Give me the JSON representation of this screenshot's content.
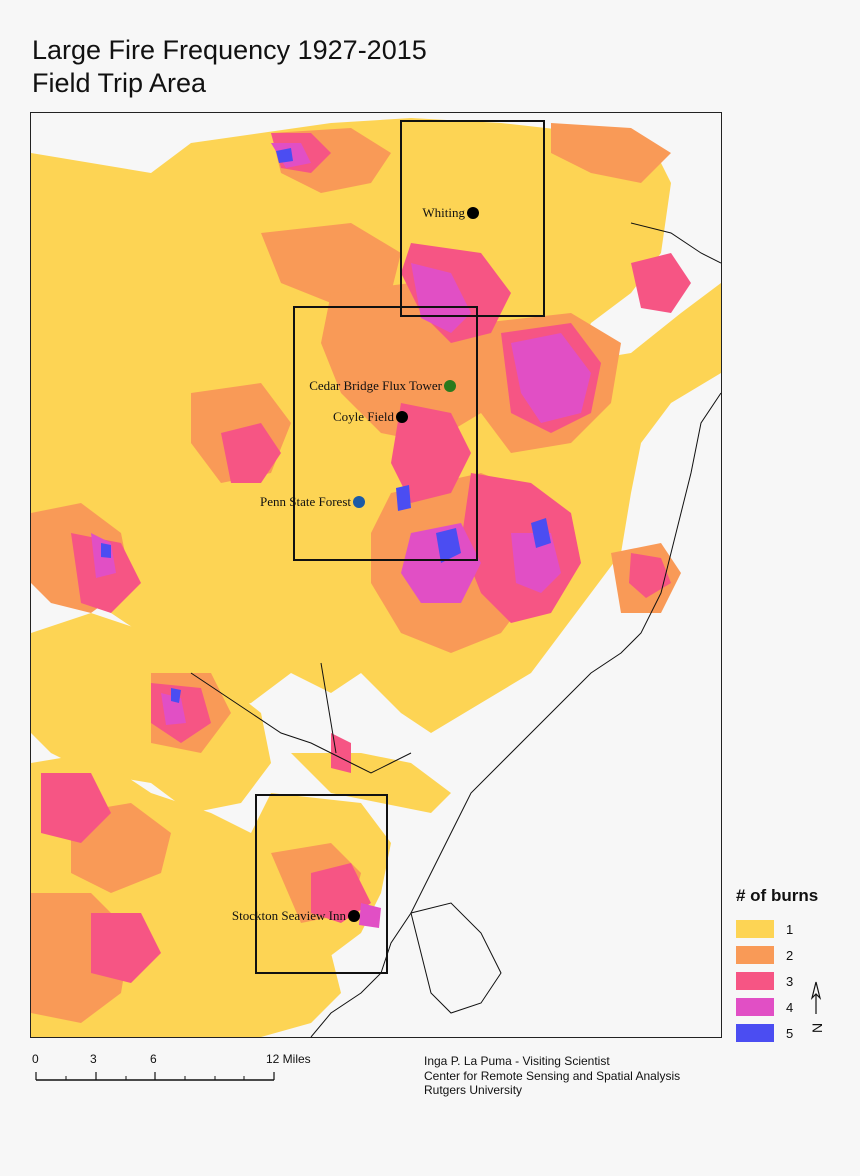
{
  "title": {
    "line1": "Large Fire Frequency 1927-2015",
    "line2": "Field Trip Area"
  },
  "colors": {
    "burn_1": "#fdd454",
    "burn_2": "#f99a57",
    "burn_3": "#f65584",
    "burn_4": "#e14fc5",
    "burn_5": "#4b4df2",
    "background": "#f7f7f7"
  },
  "places": [
    {
      "id": "whiting",
      "label": "Whiting",
      "marker_color": "#000000"
    },
    {
      "id": "cedar-bridge",
      "label": "Cedar Bridge Flux Tower",
      "marker_color": "#2a7a1d"
    },
    {
      "id": "coyle-field",
      "label": "Coyle Field",
      "marker_color": "#000000"
    },
    {
      "id": "penn-state-forest",
      "label": "Penn State Forest",
      "marker_color": "#1c5aa6"
    },
    {
      "id": "stockton-seaview",
      "label": "Stockton Seaview Inn",
      "marker_color": "#000000"
    }
  ],
  "legend": {
    "title": "# of burns",
    "items": [
      {
        "label": "1",
        "color": "#fdd454"
      },
      {
        "label": "2",
        "color": "#f99a57"
      },
      {
        "label": "3",
        "color": "#f65584"
      },
      {
        "label": "4",
        "color": "#e14fc5"
      },
      {
        "label": "5",
        "color": "#4b4df2"
      }
    ]
  },
  "scale": {
    "ticks": [
      "0",
      "3",
      "6",
      "12 Miles"
    ]
  },
  "credit": {
    "line1": "Inga P. La Puma - Visiting Scientist",
    "line2": "Center for Remote Sensing and Spatial Analysis",
    "line3": "Rutgers University"
  },
  "north_arrow": {
    "label": "N",
    "icon": "north-arrow-icon"
  }
}
